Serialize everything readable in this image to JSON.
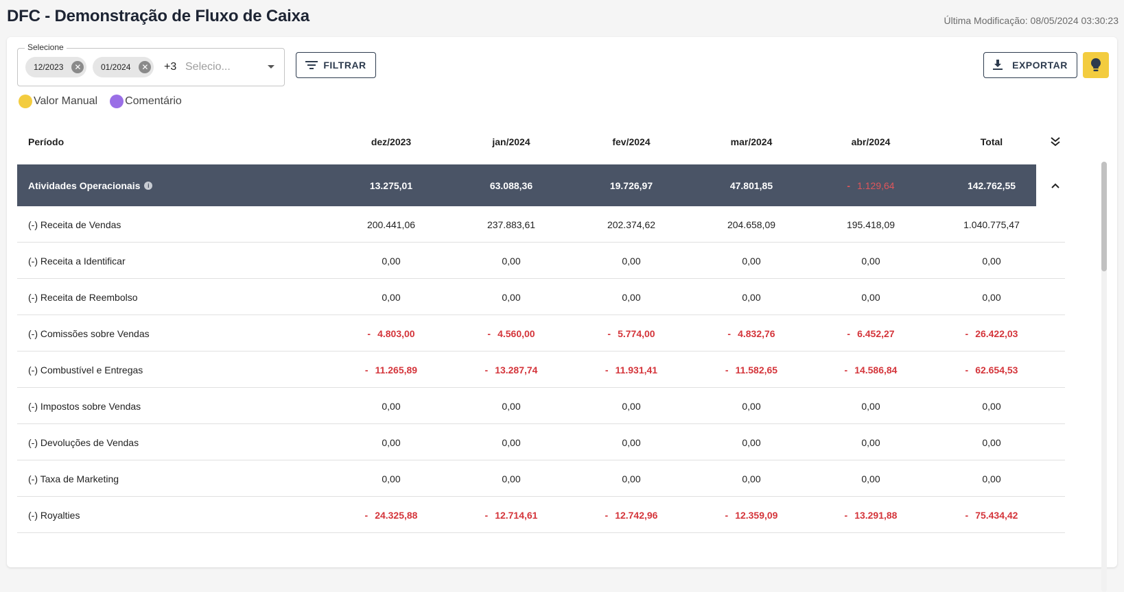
{
  "header": {
    "title": "DFC - Demonstração de Fluxo de Caixa",
    "last_modified": "Última Modificação: 08/05/2024 03:30:23"
  },
  "selector": {
    "legend": "Selecione",
    "chips": [
      "12/2023",
      "01/2024"
    ],
    "more_count": "+3",
    "placeholder": "Selecio..."
  },
  "toolbar": {
    "filter_label": "FILTRAR",
    "export_label": "EXPORTAR"
  },
  "legend": {
    "items": [
      {
        "label": "Valor Manual",
        "color": "#f3cc3f"
      },
      {
        "label": "Comentário",
        "color": "#9a6fe6"
      }
    ]
  },
  "table": {
    "header_label": "Período",
    "columns": [
      "dez/2023",
      "jan/2024",
      "fev/2024",
      "mar/2024",
      "abr/2024",
      "Total"
    ],
    "group": {
      "label": "Atividades Operacionais",
      "values": [
        "13.275,01",
        "63.088,36",
        "19.726,97",
        "47.801,85",
        "1.129,64",
        "142.762,55"
      ],
      "negative": [
        false,
        false,
        false,
        false,
        true,
        false
      ]
    },
    "rows": [
      {
        "label": "(-) Receita de Vendas",
        "values": [
          "200.441,06",
          "237.883,61",
          "202.374,62",
          "204.658,09",
          "195.418,09",
          "1.040.775,47"
        ],
        "negative": false
      },
      {
        "label": "(-) Receita a Identificar",
        "values": [
          "0,00",
          "0,00",
          "0,00",
          "0,00",
          "0,00",
          "0,00"
        ],
        "negative": false
      },
      {
        "label": "(-) Receita de Reembolso",
        "values": [
          "0,00",
          "0,00",
          "0,00",
          "0,00",
          "0,00",
          "0,00"
        ],
        "negative": false
      },
      {
        "label": "(-) Comissões sobre Vendas",
        "values": [
          "4.803,00",
          "4.560,00",
          "5.774,00",
          "4.832,76",
          "6.452,27",
          "26.422,03"
        ],
        "negative": true
      },
      {
        "label": "(-) Combustível e Entregas",
        "values": [
          "11.265,89",
          "13.287,74",
          "11.931,41",
          "11.582,65",
          "14.586,84",
          "62.654,53"
        ],
        "negative": true
      },
      {
        "label": "(-) Impostos sobre Vendas",
        "values": [
          "0,00",
          "0,00",
          "0,00",
          "0,00",
          "0,00",
          "0,00"
        ],
        "negative": false
      },
      {
        "label": "(-) Devoluções de Vendas",
        "values": [
          "0,00",
          "0,00",
          "0,00",
          "0,00",
          "0,00",
          "0,00"
        ],
        "negative": false
      },
      {
        "label": "(-) Taxa de Marketing",
        "values": [
          "0,00",
          "0,00",
          "0,00",
          "0,00",
          "0,00",
          "0,00"
        ],
        "negative": false
      },
      {
        "label": "(-) Royalties",
        "values": [
          "24.325,88",
          "12.714,61",
          "12.742,96",
          "12.359,09",
          "13.291,88",
          "75.434,42"
        ],
        "negative": true
      }
    ],
    "negative_prefix": "-"
  },
  "icons": {
    "chip_close": "close-circle-icon",
    "filter": "filter-icon",
    "export": "download-icon",
    "idea": "lightbulb-icon",
    "expand_all": "double-chevron-down-icon",
    "collapse_group": "chevron-up-icon",
    "info": "info-icon"
  },
  "colors": {
    "group_row_bg": "#4a5466",
    "negative": "#d4343a",
    "accent_yellow": "#f3cc3f"
  }
}
